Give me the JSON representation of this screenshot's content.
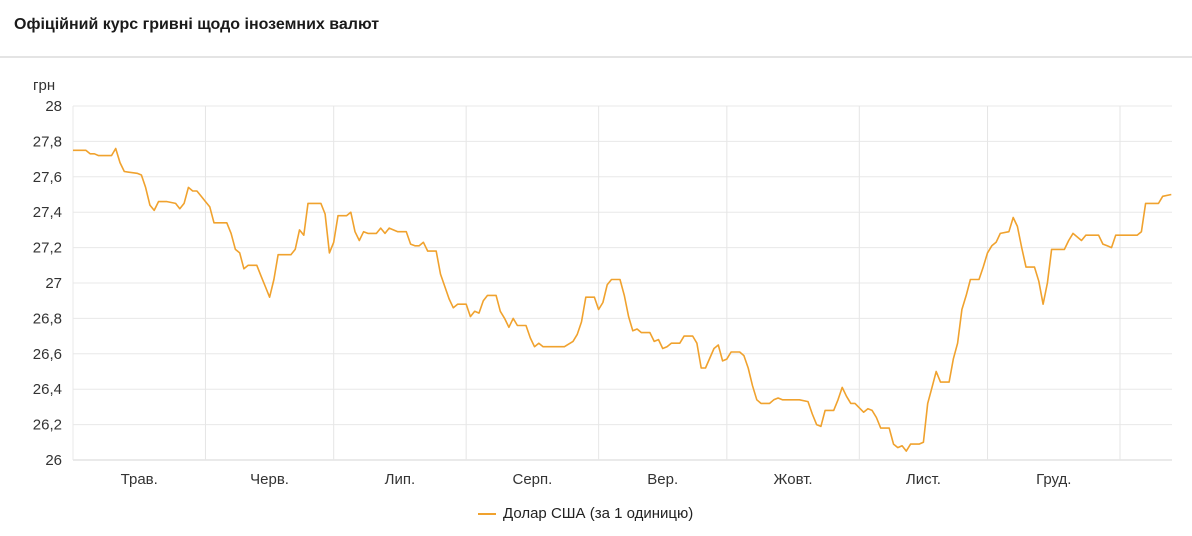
{
  "header": {
    "title": "Офіційний курс гривні щодо іноземних валют"
  },
  "chart_data": {
    "type": "line",
    "title": "Офіційний курс гривні щодо іноземних валют",
    "ylabel": "грн",
    "xlabel": "",
    "ylim": [
      26,
      28
    ],
    "yticks": [
      "26",
      "26,2",
      "26,4",
      "26,6",
      "26,8",
      "27",
      "27,2",
      "27,4",
      "27,6",
      "27,8",
      "28"
    ],
    "xticks": [
      "Трав.",
      "Черв.",
      "Лип.",
      "Серп.",
      "Вер.",
      "Жовт.",
      "Лист.",
      "Груд."
    ],
    "xlim": [
      "05-01",
      "01-13"
    ],
    "grid": true,
    "legend_position": "bottom",
    "series": [
      {
        "name": "Долар США (за 1 одиницю)",
        "color": "#f0a22e",
        "points": [
          [
            "05-01",
            27.75
          ],
          [
            "05-04",
            27.75
          ],
          [
            "05-05",
            27.73
          ],
          [
            "05-06",
            27.73
          ],
          [
            "05-07",
            27.72
          ],
          [
            "05-10",
            27.72
          ],
          [
            "05-11",
            27.76
          ],
          [
            "05-12",
            27.68
          ],
          [
            "05-13",
            27.63
          ],
          [
            "05-16",
            27.62
          ],
          [
            "05-17",
            27.61
          ],
          [
            "05-18",
            27.54
          ],
          [
            "05-19",
            27.44
          ],
          [
            "05-20",
            27.41
          ],
          [
            "05-21",
            27.46
          ],
          [
            "05-23",
            27.46
          ],
          [
            "05-25",
            27.45
          ],
          [
            "05-26",
            27.42
          ],
          [
            "05-27",
            27.45
          ],
          [
            "05-28",
            27.54
          ],
          [
            "05-29",
            27.52
          ],
          [
            "05-30",
            27.52
          ],
          [
            "05-31",
            27.49
          ],
          [
            "06-01",
            27.46
          ],
          [
            "06-02",
            27.43
          ],
          [
            "06-03",
            27.34
          ],
          [
            "06-04",
            27.34
          ],
          [
            "06-06",
            27.34
          ],
          [
            "06-07",
            27.28
          ],
          [
            "06-08",
            27.19
          ],
          [
            "06-09",
            27.17
          ],
          [
            "06-10",
            27.08
          ],
          [
            "06-11",
            27.1
          ],
          [
            "06-13",
            27.1
          ],
          [
            "06-14",
            27.04
          ],
          [
            "06-15",
            26.98
          ],
          [
            "06-16",
            26.92
          ],
          [
            "06-17",
            27.02
          ],
          [
            "06-18",
            27.16
          ],
          [
            "06-21",
            27.16
          ],
          [
            "06-22",
            27.19
          ],
          [
            "06-23",
            27.3
          ],
          [
            "06-24",
            27.27
          ],
          [
            "06-25",
            27.45
          ],
          [
            "06-28",
            27.45
          ],
          [
            "06-29",
            27.39
          ],
          [
            "06-30",
            27.17
          ],
          [
            "07-01",
            27.23
          ],
          [
            "07-02",
            27.38
          ],
          [
            "07-04",
            27.38
          ],
          [
            "07-05",
            27.4
          ],
          [
            "07-06",
            27.29
          ],
          [
            "07-07",
            27.24
          ],
          [
            "07-08",
            27.29
          ],
          [
            "07-09",
            27.28
          ],
          [
            "07-11",
            27.28
          ],
          [
            "07-12",
            27.31
          ],
          [
            "07-13",
            27.28
          ],
          [
            "07-14",
            27.31
          ],
          [
            "07-16",
            27.29
          ],
          [
            "07-18",
            27.29
          ],
          [
            "07-19",
            27.22
          ],
          [
            "07-20",
            27.21
          ],
          [
            "07-21",
            27.21
          ],
          [
            "07-22",
            27.23
          ],
          [
            "07-23",
            27.18
          ],
          [
            "07-25",
            27.18
          ],
          [
            "07-26",
            27.05
          ],
          [
            "07-28",
            26.91
          ],
          [
            "07-29",
            26.86
          ],
          [
            "07-30",
            26.88
          ],
          [
            "08-01",
            26.88
          ],
          [
            "08-02",
            26.81
          ],
          [
            "08-03",
            26.84
          ],
          [
            "08-04",
            26.83
          ],
          [
            "08-05",
            26.9
          ],
          [
            "08-06",
            26.93
          ],
          [
            "08-08",
            26.93
          ],
          [
            "08-09",
            26.84
          ],
          [
            "08-10",
            26.8
          ],
          [
            "08-11",
            26.75
          ],
          [
            "08-12",
            26.8
          ],
          [
            "08-13",
            26.76
          ],
          [
            "08-15",
            26.76
          ],
          [
            "08-16",
            26.69
          ],
          [
            "08-17",
            26.64
          ],
          [
            "08-18",
            26.66
          ],
          [
            "08-19",
            26.64
          ],
          [
            "08-24",
            26.64
          ],
          [
            "08-26",
            26.67
          ],
          [
            "08-27",
            26.71
          ],
          [
            "08-28",
            26.78
          ],
          [
            "08-29",
            26.92
          ],
          [
            "08-31",
            26.92
          ],
          [
            "09-01",
            26.85
          ],
          [
            "09-02",
            26.89
          ],
          [
            "09-03",
            26.99
          ],
          [
            "09-04",
            27.02
          ],
          [
            "09-06",
            27.02
          ],
          [
            "09-07",
            26.93
          ],
          [
            "09-08",
            26.81
          ],
          [
            "09-09",
            26.73
          ],
          [
            "09-10",
            26.74
          ],
          [
            "09-11",
            26.72
          ],
          [
            "09-13",
            26.72
          ],
          [
            "09-14",
            26.67
          ],
          [
            "09-15",
            26.68
          ],
          [
            "09-16",
            26.63
          ],
          [
            "09-17",
            26.64
          ],
          [
            "09-18",
            26.66
          ],
          [
            "09-20",
            26.66
          ],
          [
            "09-21",
            26.7
          ],
          [
            "09-23",
            26.7
          ],
          [
            "09-24",
            26.66
          ],
          [
            "09-25",
            26.52
          ],
          [
            "09-26",
            26.52
          ],
          [
            "09-28",
            26.63
          ],
          [
            "09-29",
            26.65
          ],
          [
            "09-30",
            26.56
          ],
          [
            "10-01",
            26.57
          ],
          [
            "10-02",
            26.61
          ],
          [
            "10-04",
            26.61
          ],
          [
            "10-05",
            26.59
          ],
          [
            "10-06",
            26.52
          ],
          [
            "10-07",
            26.42
          ],
          [
            "10-08",
            26.34
          ],
          [
            "10-09",
            26.32
          ],
          [
            "10-11",
            26.32
          ],
          [
            "10-12",
            26.34
          ],
          [
            "10-13",
            26.35
          ],
          [
            "10-14",
            26.34
          ],
          [
            "10-18",
            26.34
          ],
          [
            "10-20",
            26.33
          ],
          [
            "10-21",
            26.26
          ],
          [
            "10-22",
            26.2
          ],
          [
            "10-23",
            26.19
          ],
          [
            "10-24",
            26.28
          ],
          [
            "10-26",
            26.28
          ],
          [
            "10-27",
            26.34
          ],
          [
            "10-28",
            26.41
          ],
          [
            "10-29",
            26.36
          ],
          [
            "10-30",
            26.32
          ],
          [
            "10-31",
            26.32
          ],
          [
            "11-02",
            26.27
          ],
          [
            "11-03",
            26.29
          ],
          [
            "11-04",
            26.28
          ],
          [
            "11-05",
            26.24
          ],
          [
            "11-06",
            26.18
          ],
          [
            "11-08",
            26.18
          ],
          [
            "11-09",
            26.09
          ],
          [
            "11-10",
            26.07
          ],
          [
            "11-11",
            26.08
          ],
          [
            "11-12",
            26.05
          ],
          [
            "11-13",
            26.09
          ],
          [
            "11-15",
            26.09
          ],
          [
            "11-16",
            26.1
          ],
          [
            "11-17",
            26.32
          ],
          [
            "11-18",
            26.41
          ],
          [
            "11-19",
            26.5
          ],
          [
            "11-20",
            26.44
          ],
          [
            "11-22",
            26.44
          ],
          [
            "11-23",
            26.57
          ],
          [
            "11-24",
            26.66
          ],
          [
            "11-25",
            26.85
          ],
          [
            "11-26",
            26.93
          ],
          [
            "11-27",
            27.02
          ],
          [
            "11-29",
            27.02
          ],
          [
            "11-30",
            27.09
          ],
          [
            "12-01",
            27.17
          ],
          [
            "12-02",
            27.21
          ],
          [
            "12-03",
            27.23
          ],
          [
            "12-04",
            27.28
          ],
          [
            "12-06",
            27.29
          ],
          [
            "12-07",
            27.37
          ],
          [
            "12-08",
            27.32
          ],
          [
            "12-09",
            27.2
          ],
          [
            "12-10",
            27.09
          ],
          [
            "12-12",
            27.09
          ],
          [
            "12-13",
            27.01
          ],
          [
            "12-14",
            26.88
          ],
          [
            "12-15",
            27.0
          ],
          [
            "12-16",
            27.19
          ],
          [
            "12-19",
            27.19
          ],
          [
            "12-20",
            27.24
          ],
          [
            "12-21",
            27.28
          ],
          [
            "12-22",
            27.26
          ],
          [
            "12-23",
            27.24
          ],
          [
            "12-24",
            27.27
          ],
          [
            "12-27",
            27.27
          ],
          [
            "12-28",
            27.22
          ],
          [
            "12-29",
            27.21
          ],
          [
            "12-30",
            27.2
          ],
          [
            "12-31",
            27.27
          ],
          [
            "01-05",
            27.27
          ],
          [
            "01-06",
            27.29
          ],
          [
            "01-07",
            27.45
          ],
          [
            "01-10",
            27.45
          ],
          [
            "01-11",
            27.49
          ],
          [
            "01-13",
            27.5
          ]
        ]
      }
    ]
  }
}
